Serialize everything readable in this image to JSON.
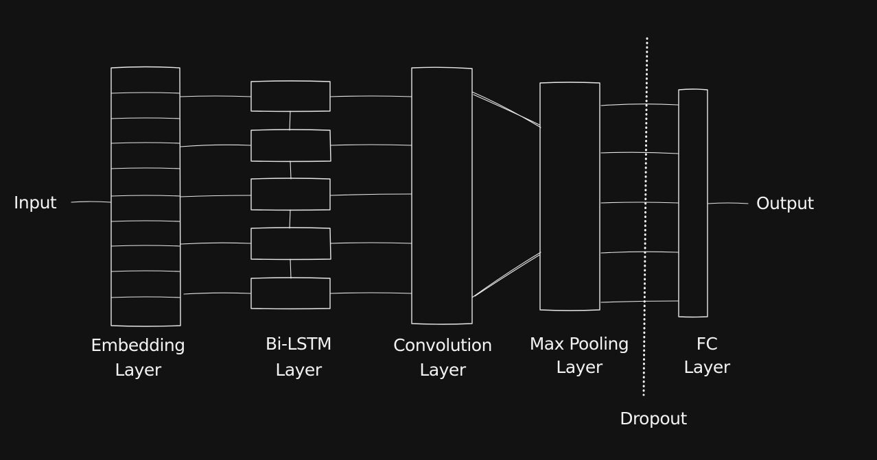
{
  "input_label": "Input",
  "output_label": "Output",
  "dropout_label": "Dropout",
  "layers": {
    "embedding": {
      "line1": "Embedding",
      "line2": "Layer"
    },
    "bilstm": {
      "line1": "Bi-LSTM",
      "line2": "Layer"
    },
    "convolution": {
      "line1": "Convolution",
      "line2": "Layer"
    },
    "maxpool": {
      "line1": "Max Pooling",
      "line2": "Layer"
    },
    "fc": {
      "line1": "FC",
      "line2": "Layer"
    }
  }
}
